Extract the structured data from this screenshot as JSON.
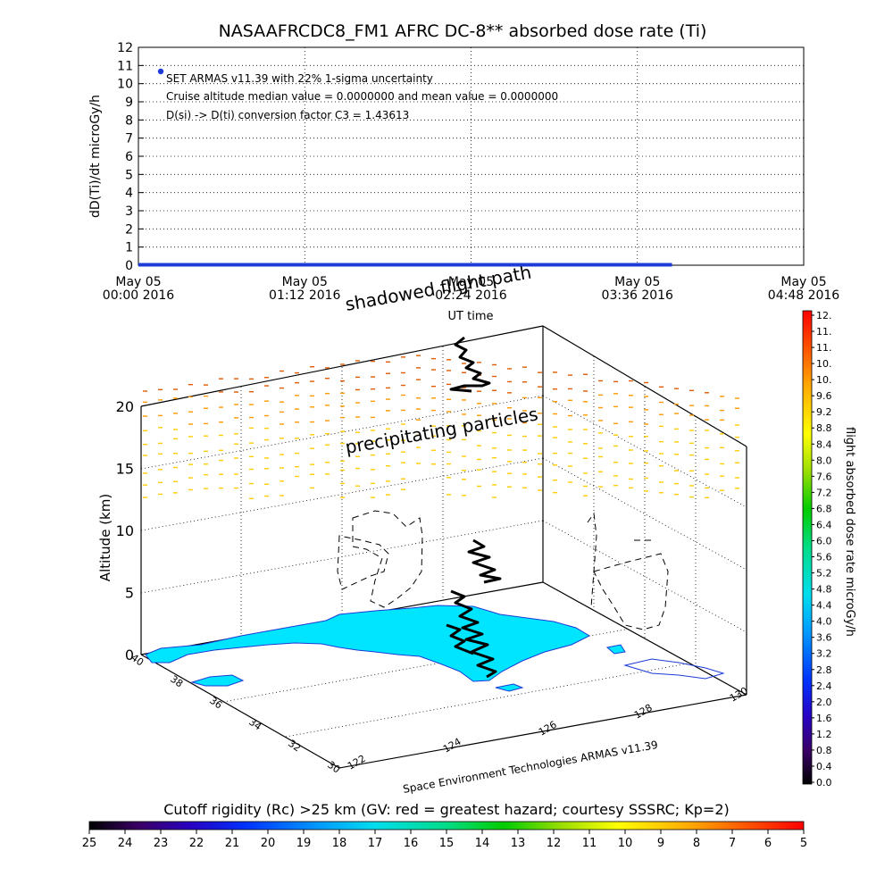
{
  "chart_data": [
    {
      "type": "line",
      "title": "NASAAFRCDC8_FM1 AFRC DC-8** absorbed dose rate (Ti)",
      "ylabel": "dD(Ti)/dt microGy/h",
      "xlabel": "UT time",
      "ylim": [
        0,
        12
      ],
      "y_ticks": [
        "0",
        "1",
        "2",
        "3",
        "4",
        "5",
        "6",
        "7",
        "8",
        "9",
        "10",
        "11",
        "12"
      ],
      "x_ticks": [
        {
          "date": "May 05",
          "time": "00:00 2016"
        },
        {
          "date": "May 05",
          "time": "01:12 2016"
        },
        {
          "date": "May 05",
          "time": "02:24 2016"
        },
        {
          "date": "May 05",
          "time": "03:36 2016"
        },
        {
          "date": "May 05",
          "time": "04:48 2016"
        }
      ],
      "xlim_hours": [
        0,
        4.8
      ],
      "series": [
        {
          "x_hours": [
            0.0,
            0.6,
            1.2,
            1.8,
            2.4,
            3.0,
            3.6,
            3.85
          ],
          "values": [
            0,
            0,
            0,
            0,
            0,
            0,
            0,
            0
          ],
          "color": "#1f3bd6"
        }
      ],
      "legend_marker_color": "#1f3bd6",
      "annotations": [
        "SET ARMAS v11.39 with 22% 1-sigma uncertainty",
        "Cruise altitude median value = 0.0000000 and mean value = 0.0000000",
        "D(si) -> D(ti) conversion factor C3 = 1.43613"
      ],
      "grid": true
    },
    {
      "type": "scatter",
      "zlabel": "Altitude (km)",
      "z_ticks": [
        "0",
        "5",
        "10",
        "15",
        "20"
      ],
      "zlim": [
        0,
        20
      ],
      "lat_ticks": [
        "30",
        "32",
        "34",
        "36",
        "38",
        "40"
      ],
      "lon_ticks": [
        "122",
        "124",
        "126",
        "128",
        "130"
      ],
      "annotations": [
        "shadowed flight path",
        "precipitating particles"
      ],
      "footer": "Space Environment Technologies ARMAS v11.39",
      "flight_path_color": "#000000",
      "particle_colors": [
        "#ff9900",
        "#ffcc00",
        "#e05a00"
      ],
      "land_color": "#00e5ff",
      "grid": true
    }
  ],
  "colorbar_right": {
    "label": "flight absorbed dose rate microGy/h",
    "ticks": [
      "12.",
      "11.",
      "11.",
      "10.",
      "10.",
      "9.6",
      "9.2",
      "8.8",
      "8.4",
      "8.0",
      "7.6",
      "7.2",
      "6.8",
      "6.4",
      "6.0",
      "5.6",
      "5.2",
      "4.8",
      "4.4",
      "4.0",
      "3.6",
      "3.2",
      "2.8",
      "2.4",
      "2.0",
      "1.6",
      "1.2",
      "0.8",
      "0.4",
      "0.0"
    ]
  },
  "colorbar_bottom": {
    "label": "Cutoff rigidity (Rc) >25 km (GV: red = greatest hazard; courtesy SSSRC; Kp=2)",
    "ticks": [
      "25",
      "24",
      "23",
      "22",
      "21",
      "20",
      "19",
      "18",
      "17",
      "16",
      "15",
      "14",
      "13",
      "12",
      "11",
      "10",
      "9",
      "8",
      "7",
      "6",
      "5"
    ]
  }
}
